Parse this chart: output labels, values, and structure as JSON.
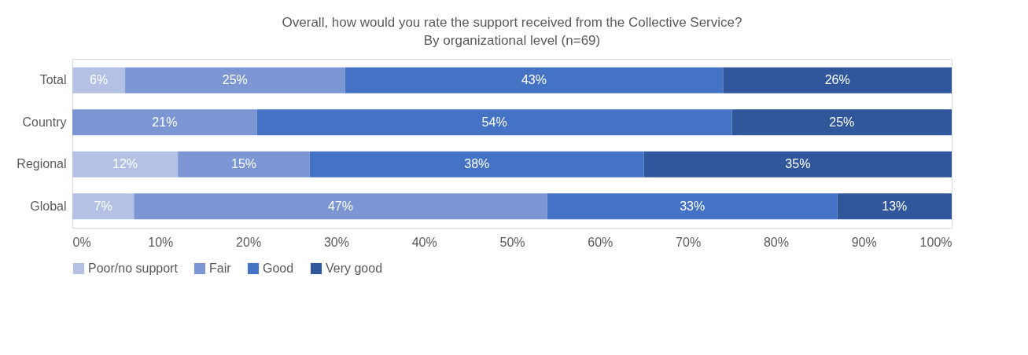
{
  "chart_data": {
    "type": "bar",
    "orientation": "horizontal",
    "stacked": true,
    "title": "Overall, how would you rate the support received from the Collective Service?",
    "subtitle": "By organizational level (n=69)",
    "categories": [
      "Total",
      "Country",
      "Regional",
      "Global"
    ],
    "series": [
      {
        "name": "Poor/no support",
        "color": "#b4c1e4",
        "values": [
          6,
          null,
          12,
          7
        ],
        "value_labels": [
          "6%",
          null,
          "12%",
          "7%"
        ]
      },
      {
        "name": "Fair",
        "color": "#7b96d3",
        "values": [
          25,
          21,
          15,
          47
        ],
        "value_labels": [
          "25%",
          "21%",
          "15%",
          "47%"
        ]
      },
      {
        "name": "Good",
        "color": "#4472c4",
        "values": [
          43,
          54,
          38,
          33
        ],
        "value_labels": [
          "43%",
          "54%",
          "38%",
          "33%"
        ]
      },
      {
        "name": "Very good",
        "color": "#30579b",
        "values": [
          26,
          25,
          35,
          13
        ],
        "value_labels": [
          "26%",
          "25%",
          "35%",
          "13%"
        ]
      }
    ],
    "xlim": [
      0,
      100
    ],
    "xticks": [
      {
        "value": 0,
        "label": "0%"
      },
      {
        "value": 10,
        "label": "10%"
      },
      {
        "value": 20,
        "label": "20%"
      },
      {
        "value": 30,
        "label": "30%"
      },
      {
        "value": 40,
        "label": "40%"
      },
      {
        "value": 50,
        "label": "50%"
      },
      {
        "value": 60,
        "label": "60%"
      },
      {
        "value": 70,
        "label": "70%"
      },
      {
        "value": 80,
        "label": "80%"
      },
      {
        "value": 90,
        "label": "90%"
      },
      {
        "value": 100,
        "label": "100%"
      }
    ],
    "grid": false,
    "legend": "bottom"
  }
}
